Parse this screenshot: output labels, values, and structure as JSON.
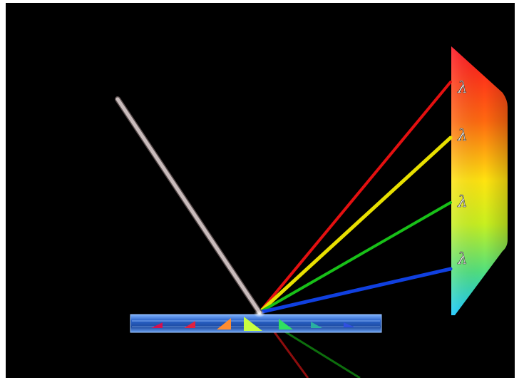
{
  "diagram": {
    "background_color": "#000000",
    "frame_color": "#ffffff",
    "incident_beam": {
      "color": "#b8a9a9",
      "label": "white light"
    },
    "grating": {
      "color": "#2a62c8",
      "groove_colors": [
        "#d21050",
        "#e02040",
        "#ff8c30",
        "#c8ff40",
        "#30e060",
        "#2ab0a0",
        "#3050e0"
      ]
    },
    "diffracted_rays": [
      {
        "name": "red",
        "color": "#e41010"
      },
      {
        "name": "yellow",
        "color": "#e8e000"
      },
      {
        "name": "green",
        "color": "#18c018"
      },
      {
        "name": "blue",
        "color": "#1040e0"
      }
    ],
    "screen": {
      "gradient": [
        "#ff1020",
        "#ff6a10",
        "#ffe410",
        "#c8f020",
        "#50e080",
        "#10c8ff"
      ],
      "labels": [
        "λ",
        "λ",
        "λ",
        "λ"
      ]
    },
    "transmitted_rays": [
      {
        "name": "red-transmitted",
        "color": "#b01010"
      },
      {
        "name": "green-transmitted",
        "color": "#108a10"
      }
    ]
  }
}
